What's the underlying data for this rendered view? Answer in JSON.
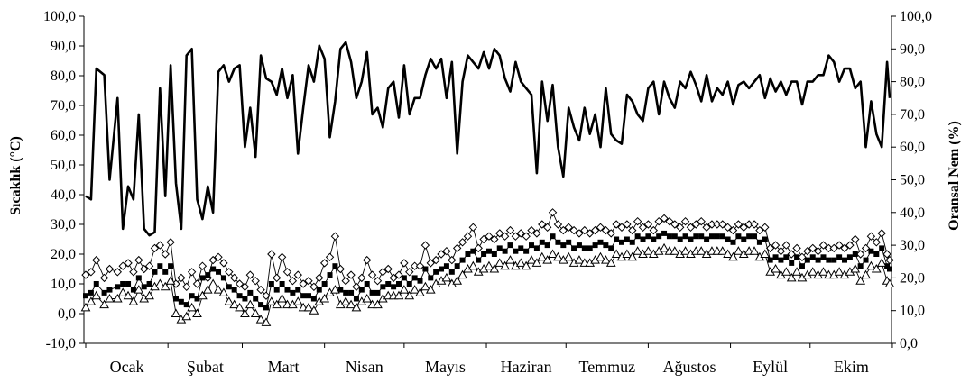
{
  "chart_data": {
    "type": "line",
    "xlabel": "",
    "ylabel": "Sıcaklık (°C)",
    "ylabel_right": "Oransal Nem (%)",
    "ylim": [
      -10,
      100
    ],
    "ylim_right": [
      0,
      100
    ],
    "y_ticks": [
      "-10,0",
      "0,0",
      "10,0",
      "20,0",
      "30,0",
      "40,0",
      "50,0",
      "60,0",
      "70,0",
      "80,0",
      "90,0",
      "100,0"
    ],
    "y_ticks_right": [
      "0,0",
      "10,0",
      "20,0",
      "30,0",
      "40,0",
      "50,0",
      "60,0",
      "70,0",
      "80,0",
      "90,0",
      "100,0"
    ],
    "categories": [
      "Ocak",
      "Şubat",
      "Mart",
      "Nisan",
      "Mayıs",
      "Haziran",
      "Temmuz",
      "Ağustos",
      "Eylül",
      "Ekim"
    ],
    "grid": false,
    "legend": "none",
    "x_unit": "day of year (1 Ocak – 31 Ekim)",
    "series": [
      {
        "axis": "right",
        "style": "thick-line",
        "color": "#000000",
        "x": [
          1,
          3,
          5,
          8,
          10,
          13,
          15,
          17,
          19,
          21,
          23,
          25,
          27,
          29,
          31,
          33,
          35,
          37,
          39,
          41,
          43,
          45,
          47,
          49,
          51,
          53,
          55,
          57,
          59,
          61,
          63,
          65,
          67,
          69,
          71,
          73,
          75,
          77,
          79,
          81,
          83,
          85,
          87,
          89,
          91,
          93,
          95,
          97,
          99,
          101,
          103,
          105,
          107,
          109,
          111,
          113,
          115,
          117,
          119,
          121,
          123,
          125,
          127,
          129,
          131,
          133,
          135,
          137,
          139,
          141,
          143,
          145,
          147,
          149,
          151,
          153,
          155,
          157,
          159,
          161,
          163,
          165,
          167,
          169,
          171,
          173,
          175,
          177,
          179,
          181,
          183,
          185,
          187,
          189,
          191,
          193,
          195,
          197,
          199,
          201,
          203,
          205,
          207,
          209,
          211,
          213,
          215,
          217,
          219,
          221,
          223,
          225,
          227,
          229,
          231,
          233,
          235,
          237,
          239,
          241,
          243,
          245,
          247,
          249,
          251,
          253,
          255,
          257,
          259,
          261,
          263,
          265,
          267,
          269,
          271,
          273,
          275,
          277,
          279,
          281,
          283,
          285,
          287,
          289,
          291,
          293,
          295,
          297,
          299,
          301,
          303,
          304
        ],
        "values": [
          45,
          44,
          84,
          82,
          50,
          75,
          35,
          48,
          44,
          70,
          35,
          33,
          34,
          78,
          45,
          85,
          49,
          35,
          88,
          90,
          44,
          38,
          48,
          40,
          83,
          85,
          80,
          84,
          85,
          60,
          72,
          57,
          88,
          81,
          80,
          76,
          84,
          75,
          82,
          58,
          72,
          85,
          80,
          91,
          87,
          63,
          74,
          90,
          92,
          86,
          75,
          80,
          89,
          70,
          72,
          66,
          78,
          80,
          69,
          85,
          70,
          75,
          75,
          82,
          87,
          84,
          87,
          75,
          86,
          58,
          80,
          88,
          86,
          84,
          89,
          84,
          90,
          88,
          81,
          77,
          86,
          80,
          78,
          76,
          52,
          80,
          68,
          79,
          60,
          51,
          72,
          66,
          62,
          72,
          64,
          70,
          60,
          78,
          64,
          62,
          61,
          76,
          74,
          70,
          68,
          78,
          80,
          70,
          80,
          75,
          72,
          80,
          78,
          83,
          79,
          74,
          82,
          74,
          78,
          76,
          80,
          73,
          79,
          80,
          78,
          80,
          82,
          75,
          81,
          77,
          80,
          76,
          80,
          80,
          73,
          80,
          80,
          82,
          82,
          88,
          86,
          80,
          84,
          84,
          78,
          80,
          60,
          74,
          64,
          60,
          86,
          75
        ]
      },
      {
        "axis": "left",
        "style": "diamond-markers",
        "color": "#000000",
        "x": [
          1,
          3,
          5,
          8,
          10,
          13,
          15,
          17,
          19,
          21,
          23,
          25,
          27,
          29,
          31,
          33,
          35,
          37,
          39,
          41,
          43,
          45,
          47,
          49,
          51,
          53,
          55,
          57,
          59,
          61,
          63,
          65,
          67,
          69,
          71,
          73,
          75,
          77,
          79,
          81,
          83,
          85,
          87,
          89,
          91,
          93,
          95,
          97,
          99,
          101,
          103,
          105,
          107,
          109,
          111,
          113,
          115,
          117,
          119,
          121,
          123,
          125,
          127,
          129,
          131,
          133,
          135,
          137,
          139,
          141,
          143,
          145,
          147,
          149,
          151,
          153,
          155,
          157,
          159,
          161,
          163,
          165,
          167,
          169,
          171,
          173,
          175,
          177,
          179,
          181,
          183,
          185,
          187,
          189,
          191,
          193,
          195,
          197,
          199,
          201,
          203,
          205,
          207,
          209,
          211,
          213,
          215,
          217,
          219,
          221,
          223,
          225,
          227,
          229,
          231,
          233,
          235,
          237,
          239,
          241,
          243,
          245,
          247,
          249,
          251,
          253,
          255,
          257,
          259,
          261,
          263,
          265,
          267,
          269,
          271,
          273,
          275,
          277,
          279,
          281,
          283,
          285,
          287,
          289,
          291,
          293,
          295,
          297,
          299,
          301,
          303,
          304
        ],
        "values": [
          13,
          14,
          18,
          12,
          15,
          14,
          16,
          17,
          14,
          18,
          15,
          16,
          22,
          23,
          20,
          24,
          10,
          12,
          9,
          14,
          10,
          16,
          12,
          18,
          19,
          17,
          14,
          12,
          10,
          9,
          13,
          11,
          8,
          6,
          20,
          12,
          19,
          14,
          11,
          13,
          10,
          11,
          9,
          12,
          17,
          19,
          26,
          15,
          11,
          13,
          9,
          12,
          18,
          13,
          11,
          14,
          15,
          12,
          13,
          17,
          14,
          16,
          16,
          23,
          17,
          18,
          20,
          21,
          18,
          22,
          24,
          26,
          29,
          22,
          25,
          26,
          25,
          27,
          26,
          28,
          26,
          27,
          26,
          28,
          27,
          30,
          29,
          34,
          30,
          28,
          29,
          28,
          27,
          28,
          27,
          28,
          29,
          28,
          27,
          30,
          29,
          30,
          28,
          31,
          29,
          30,
          28,
          31,
          32,
          31,
          30,
          29,
          31,
          29,
          30,
          31,
          29,
          30,
          30,
          30,
          29,
          28,
          30,
          29,
          30,
          30,
          28,
          29,
          22,
          23,
          21,
          23,
          20,
          22,
          19,
          21,
          22,
          21,
          23,
          22,
          22,
          23,
          22,
          23,
          25,
          20,
          22,
          26,
          24,
          27,
          20,
          18
        ]
      },
      {
        "axis": "left",
        "style": "square-markers",
        "color": "#000000",
        "x": [
          1,
          3,
          5,
          8,
          10,
          13,
          15,
          17,
          19,
          21,
          23,
          25,
          27,
          29,
          31,
          33,
          35,
          37,
          39,
          41,
          43,
          45,
          47,
          49,
          51,
          53,
          55,
          57,
          59,
          61,
          63,
          65,
          67,
          69,
          71,
          73,
          75,
          77,
          79,
          81,
          83,
          85,
          87,
          89,
          91,
          93,
          95,
          97,
          99,
          101,
          103,
          105,
          107,
          109,
          111,
          113,
          115,
          117,
          119,
          121,
          123,
          125,
          127,
          129,
          131,
          133,
          135,
          137,
          139,
          141,
          143,
          145,
          147,
          149,
          151,
          153,
          155,
          157,
          159,
          161,
          163,
          165,
          167,
          169,
          171,
          173,
          175,
          177,
          179,
          181,
          183,
          185,
          187,
          189,
          191,
          193,
          195,
          197,
          199,
          201,
          203,
          205,
          207,
          209,
          211,
          213,
          215,
          217,
          219,
          221,
          223,
          225,
          227,
          229,
          231,
          233,
          235,
          237,
          239,
          241,
          243,
          245,
          247,
          249,
          251,
          253,
          255,
          257,
          259,
          261,
          263,
          265,
          267,
          269,
          271,
          273,
          275,
          277,
          279,
          281,
          283,
          285,
          287,
          289,
          291,
          293,
          295,
          297,
          299,
          301,
          303,
          304
        ],
        "values": [
          6,
          7,
          10,
          7,
          8,
          9,
          10,
          10,
          8,
          12,
          9,
          10,
          14,
          16,
          14,
          16,
          5,
          4,
          3,
          6,
          5,
          12,
          13,
          15,
          14,
          12,
          9,
          8,
          6,
          5,
          7,
          5,
          3,
          2,
          10,
          8,
          10,
          8,
          7,
          8,
          6,
          6,
          5,
          8,
          10,
          13,
          16,
          8,
          7,
          7,
          5,
          8,
          10,
          7,
          7,
          9,
          10,
          9,
          10,
          12,
          10,
          12,
          11,
          15,
          12,
          14,
          15,
          16,
          14,
          16,
          18,
          20,
          21,
          18,
          20,
          21,
          20,
          22,
          21,
          23,
          21,
          22,
          21,
          23,
          22,
          24,
          23,
          26,
          24,
          23,
          24,
          22,
          23,
          22,
          22,
          23,
          24,
          23,
          22,
          25,
          24,
          25,
          24,
          26,
          25,
          26,
          25,
          26,
          27,
          26,
          26,
          25,
          26,
          25,
          26,
          26,
          25,
          26,
          26,
          26,
          25,
          24,
          26,
          25,
          26,
          26,
          24,
          25,
          18,
          19,
          18,
          19,
          17,
          19,
          16,
          18,
          19,
          18,
          19,
          18,
          18,
          19,
          18,
          19,
          20,
          16,
          18,
          21,
          20,
          22,
          16,
          15
        ]
      },
      {
        "axis": "left",
        "style": "triangle-markers",
        "color": "#000000",
        "x": [
          1,
          3,
          5,
          8,
          10,
          13,
          15,
          17,
          19,
          21,
          23,
          25,
          27,
          29,
          31,
          33,
          35,
          37,
          39,
          41,
          43,
          45,
          47,
          49,
          51,
          53,
          55,
          57,
          59,
          61,
          63,
          65,
          67,
          69,
          71,
          73,
          75,
          77,
          79,
          81,
          83,
          85,
          87,
          89,
          91,
          93,
          95,
          97,
          99,
          101,
          103,
          105,
          107,
          109,
          111,
          113,
          115,
          117,
          119,
          121,
          123,
          125,
          127,
          129,
          131,
          133,
          135,
          137,
          139,
          141,
          143,
          145,
          147,
          149,
          151,
          153,
          155,
          157,
          159,
          161,
          163,
          165,
          167,
          169,
          171,
          173,
          175,
          177,
          179,
          181,
          183,
          185,
          187,
          189,
          191,
          193,
          195,
          197,
          199,
          201,
          203,
          205,
          207,
          209,
          211,
          213,
          215,
          217,
          219,
          221,
          223,
          225,
          227,
          229,
          231,
          233,
          235,
          237,
          239,
          241,
          243,
          245,
          247,
          249,
          251,
          253,
          255,
          257,
          259,
          261,
          263,
          265,
          267,
          269,
          271,
          273,
          275,
          277,
          279,
          281,
          283,
          285,
          287,
          289,
          291,
          293,
          295,
          297,
          299,
          301,
          303,
          304
        ],
        "values": [
          2,
          4,
          6,
          3,
          5,
          5,
          7,
          6,
          4,
          8,
          5,
          6,
          9,
          10,
          9,
          11,
          0,
          -2,
          -1,
          2,
          0,
          6,
          8,
          10,
          8,
          7,
          4,
          3,
          2,
          0,
          3,
          0,
          -2,
          -3,
          4,
          3,
          5,
          3,
          3,
          4,
          2,
          2,
          1,
          4,
          5,
          7,
          8,
          3,
          4,
          3,
          2,
          4,
          5,
          3,
          3,
          5,
          6,
          6,
          6,
          8,
          6,
          8,
          7,
          9,
          8,
          10,
          11,
          12,
          10,
          11,
          13,
          15,
          16,
          14,
          15,
          16,
          15,
          17,
          16,
          18,
          16,
          17,
          16,
          18,
          17,
          19,
          18,
          20,
          19,
          18,
          19,
          17,
          18,
          17,
          17,
          18,
          19,
          18,
          17,
          20,
          19,
          20,
          19,
          21,
          20,
          21,
          20,
          21,
          22,
          21,
          21,
          20,
          21,
          20,
          21,
          21,
          20,
          21,
          21,
          21,
          20,
          19,
          21,
          20,
          21,
          21,
          19,
          20,
          14,
          15,
          13,
          14,
          12,
          14,
          12,
          13,
          14,
          13,
          14,
          13,
          13,
          14,
          13,
          14,
          15,
          11,
          13,
          16,
          15,
          17,
          11,
          10
        ]
      }
    ]
  }
}
